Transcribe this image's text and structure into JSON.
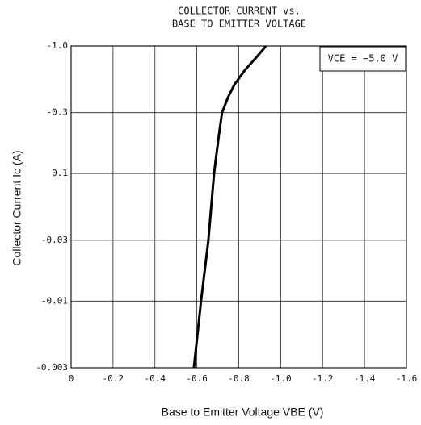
{
  "chart_data": {
    "type": "line",
    "title": [
      "COLLECTOR CURRENT vs.",
      "BASE TO EMITTER VOLTAGE"
    ],
    "x_label": "Base to Emitter Voltage VBE (V)",
    "y_label": "Collector Current Ic (A)",
    "annotation": "VCE = −5.0 V",
    "log_scale": "y",
    "grid": true,
    "xlim": [
      0,
      -1.6
    ],
    "xticks": [
      0,
      -0.2,
      -0.4,
      -0.6,
      -0.8,
      {
        "value": -1.0,
        "label": "-1.0"
      },
      -1.2,
      -1.4,
      -1.6
    ],
    "ylim": [
      -0.003,
      -1.0
    ],
    "yticks": [
      -0.003,
      -0.01,
      -0.03,
      {
        "value": -0.1,
        "label": "0.1"
      },
      -0.3,
      {
        "value": -1.0,
        "label": "-1.0"
      }
    ],
    "x": [
      -0.586,
      -0.62,
      -0.655,
      -0.682,
      -0.705,
      -0.72,
      -0.75,
      -0.78,
      -0.83,
      -0.88,
      -0.93
    ],
    "series": [
      {
        "color": "#000000",
        "values": [
          -0.003,
          -0.01,
          -0.03,
          -0.1,
          -0.2,
          -0.3,
          -0.4,
          -0.5,
          -0.65,
          -0.8,
          -1.0
        ]
      }
    ]
  }
}
